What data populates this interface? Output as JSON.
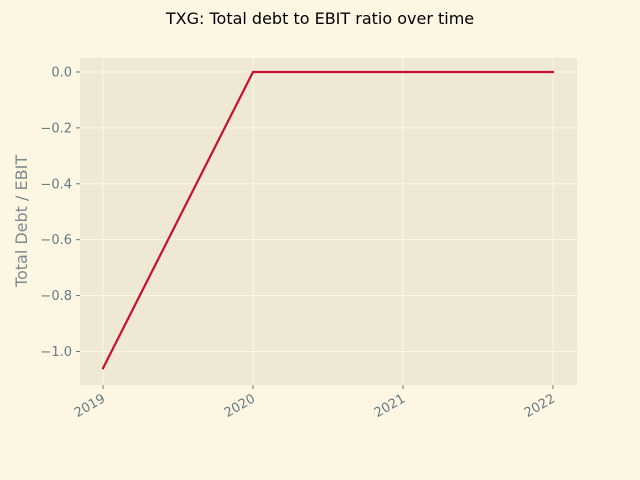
{
  "chart_data": {
    "type": "line",
    "title": "TXG: Total debt to EBIT ratio over time",
    "xlabel": "",
    "ylabel": "Total Debt / EBIT",
    "x": [
      "2019",
      "2020",
      "2021",
      "2022"
    ],
    "series": [
      {
        "values": [
          -1.06,
          0.0,
          0.0,
          0.0
        ],
        "color": "#c8102e"
      }
    ],
    "ylim": [
      -1.12,
      0.05
    ],
    "yticks": [
      0.0,
      -0.2,
      -0.4,
      -0.6,
      -0.8,
      -1.0
    ],
    "ytick_labels": [
      "0.0",
      "−0.2",
      "−0.4",
      "−0.6",
      "−0.8",
      "−1.0"
    ],
    "xtick_labels": [
      "2019",
      "2020",
      "2021",
      "2022"
    ],
    "grid": true,
    "legend": "none",
    "colors": {
      "page_background": "#fdf6e3",
      "plot_background": "#eee8d5",
      "grid": "#fdf6e3",
      "line": "#c8102e",
      "tick_text": "#657b83",
      "axis_label": "#7d8a8c"
    }
  }
}
